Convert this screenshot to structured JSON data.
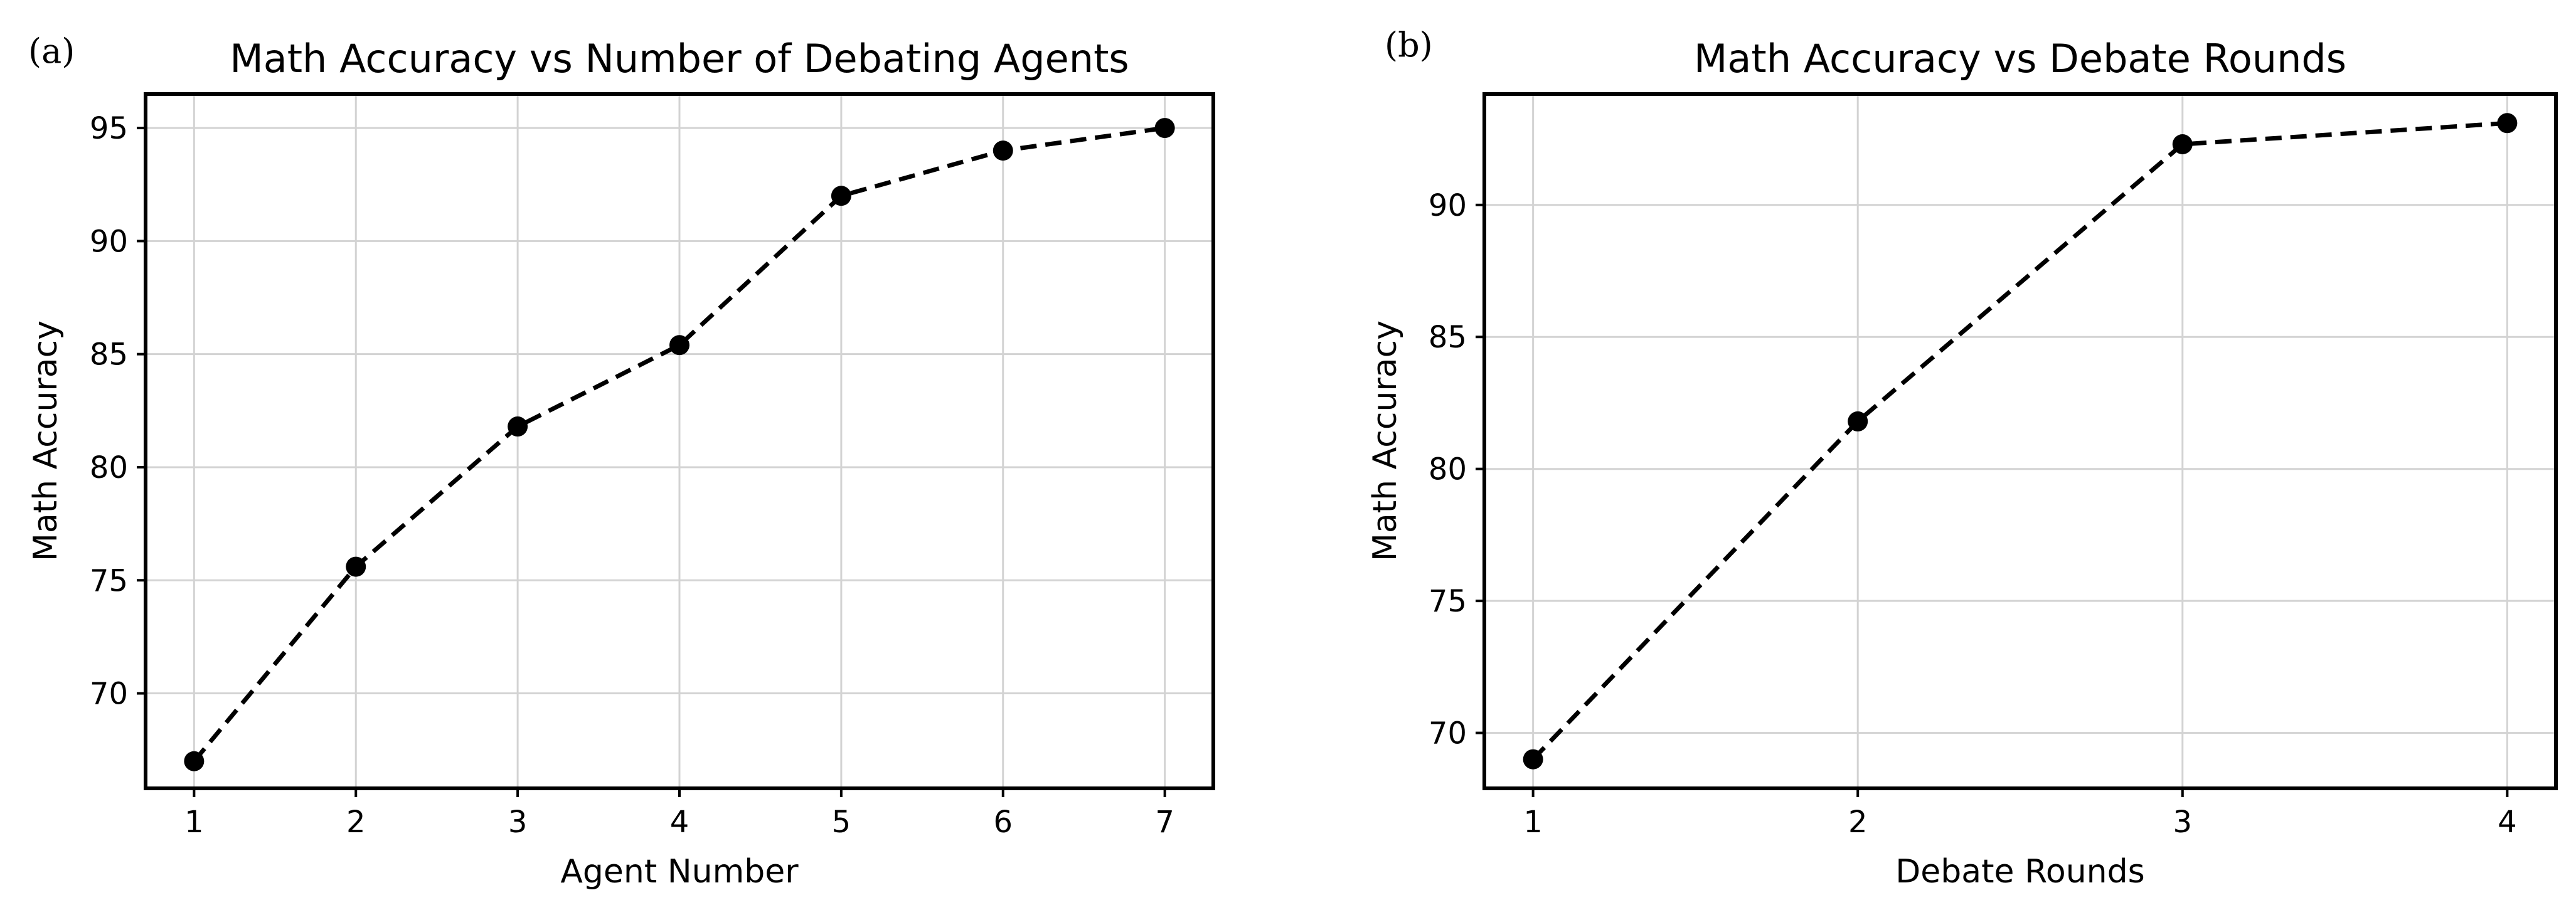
{
  "chart_data": [
    {
      "panel": "(a)",
      "type": "line",
      "title": "Math Accuracy vs Number of Debating Agents",
      "xlabel": "Agent Number",
      "ylabel": "Math Accuracy",
      "x": [
        1,
        2,
        3,
        4,
        5,
        6,
        7
      ],
      "series": [
        {
          "values": [
            67.0,
            75.6,
            81.8,
            85.4,
            92.0,
            94.0,
            95.0
          ]
        }
      ],
      "xticks": [
        "1",
        "2",
        "3",
        "4",
        "5",
        "6",
        "7"
      ],
      "yticks": [
        "70",
        "75",
        "80",
        "85",
        "90",
        "95"
      ],
      "xlim": [
        0.7,
        7.3
      ],
      "ylim": [
        65.8,
        96.5
      ],
      "grid": true,
      "line_style": "dashed",
      "marker": "circle",
      "color": "#000000"
    },
    {
      "panel": "(b)",
      "type": "line",
      "title": "Math Accuracy vs Debate Rounds",
      "xlabel": "Debate Rounds",
      "ylabel": "Math Accuracy",
      "x": [
        1,
        2,
        3,
        4
      ],
      "series": [
        {
          "values": [
            69.0,
            81.8,
            92.3,
            93.1
          ]
        }
      ],
      "xticks": [
        "1",
        "2",
        "3",
        "4"
      ],
      "yticks": [
        "70",
        "75",
        "80",
        "85",
        "90"
      ],
      "xlim": [
        0.85,
        4.15
      ],
      "ylim": [
        67.9,
        94.2
      ],
      "grid": true,
      "line_style": "dashed",
      "marker": "circle",
      "color": "#000000"
    }
  ]
}
